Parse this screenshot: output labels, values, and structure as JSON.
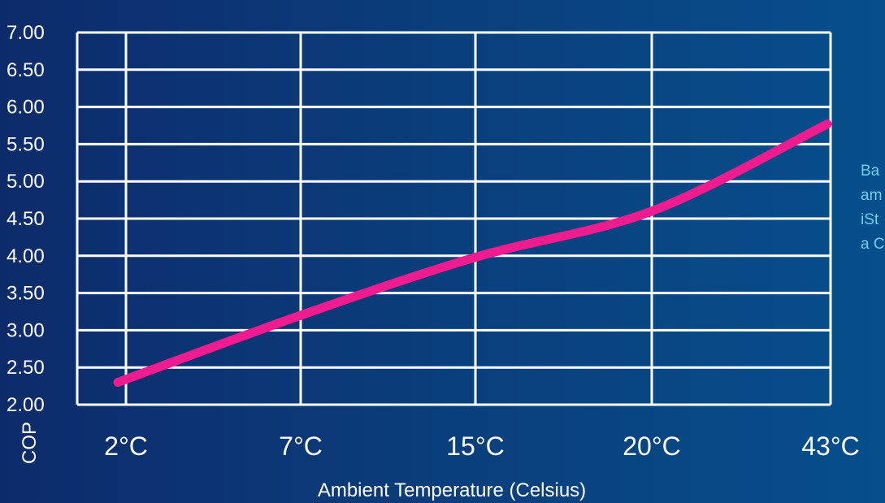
{
  "chart_data": {
    "type": "line",
    "title": "",
    "xlabel": "Ambient Temperature (Celsius)",
    "ylabel": "COP",
    "categories": [
      "2°C",
      "7°C",
      "15°C",
      "20°C",
      "43°C"
    ],
    "y_ticks": [
      "2.00",
      "2.50",
      "3.00",
      "3.50",
      "4.00",
      "4.50",
      "5.00",
      "5.50",
      "6.00",
      "6.50",
      "7.00"
    ],
    "ylim": [
      2.0,
      7.0
    ],
    "grid": true,
    "series": [
      {
        "values": [
          2.3,
          3.2,
          3.98,
          4.6,
          5.77
        ]
      }
    ],
    "colors": {
      "line": "#ee1c8e",
      "grid": "#ffffff"
    }
  },
  "side_note": {
    "lines": [
      "Ba",
      "am",
      "iSt",
      "a C"
    ]
  }
}
